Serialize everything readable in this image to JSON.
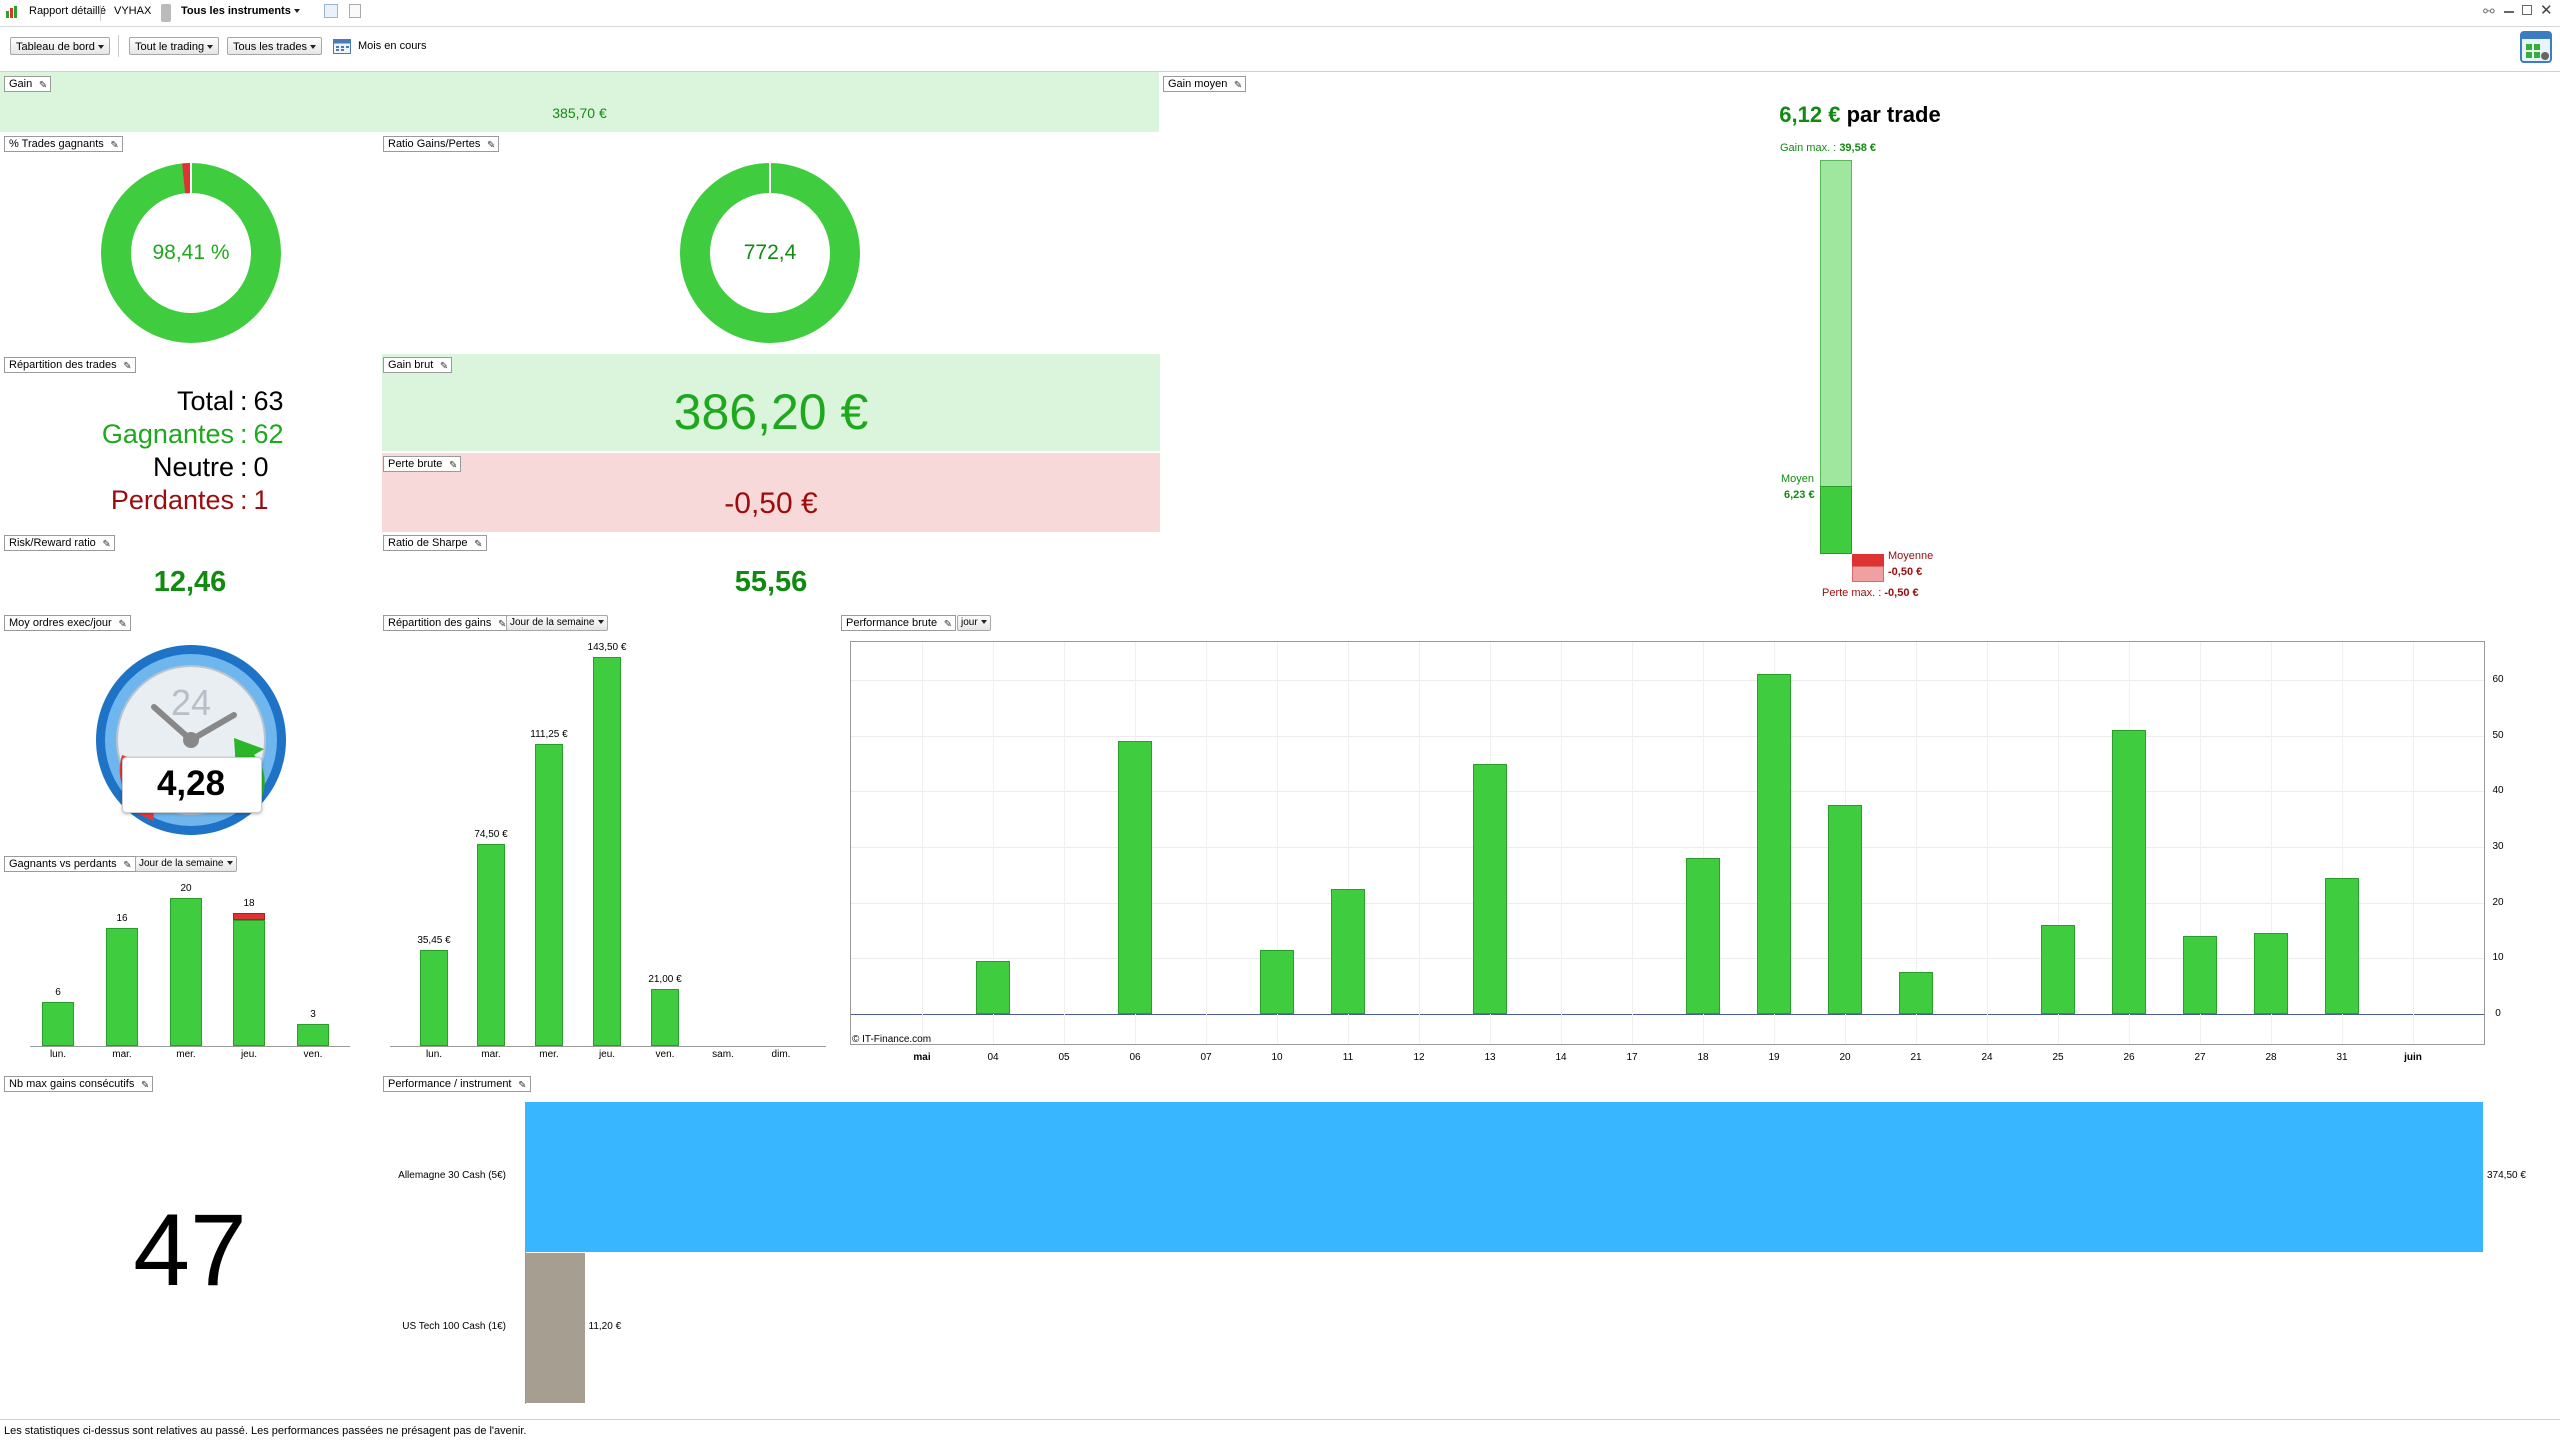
{
  "titlebar": {
    "report_label": "Rapport détaillé",
    "account": "VYHAX",
    "instruments": "Tous les instruments"
  },
  "toolbar": {
    "dashboard": "Tableau de bord",
    "trading": "Tout le trading",
    "trades": "Tous les trades",
    "period": "Mois en cours"
  },
  "gain": {
    "label": "Gain",
    "value": "385,70 €"
  },
  "gain_moyen": {
    "label": "Gain moyen",
    "value": "6,12 €",
    "suffix": "par trade",
    "max_label": "Gain max. :",
    "max_value": "39,58 €",
    "avg_label": "Moyen",
    "avg_value": "6,23 €",
    "loss_avg_label": "Moyenne",
    "loss_avg_value": "-0,50 €",
    "loss_max_label": "Perte max. :",
    "loss_max_value": "-0,50 €",
    "bar_levels": {
      "gain_max": 39.58,
      "avg_gain": 6.23,
      "avg_loss": -0.5,
      "loss_max": -0.5
    }
  },
  "pct_winning": {
    "label": "% Trades gagnants",
    "value": "98,41 %",
    "fraction": 0.9841
  },
  "ratio_gp": {
    "label": "Ratio Gains/Pertes",
    "value": "772,4"
  },
  "repartition": {
    "label": "Répartition des trades",
    "total_label": "Total",
    "total": "63",
    "win_label": "Gagnantes",
    "win": "62",
    "neutral_label": "Neutre",
    "neutral": "0",
    "loss_label": "Perdantes",
    "loss": "1"
  },
  "gain_brut": {
    "label": "Gain brut",
    "value": "386,20 €"
  },
  "perte_brute": {
    "label": "Perte brute",
    "value": "-0,50 €"
  },
  "rr": {
    "label": "Risk/Reward ratio",
    "value": "12,46"
  },
  "sharpe": {
    "label": "Ratio de Sharpe",
    "value": "55,56"
  },
  "ordres": {
    "label": "Moy ordres exec/jour",
    "value": "4,28",
    "clock_num": "24"
  },
  "gv": {
    "label": "Gagnants vs perdants",
    "dropdown": "Jour de la semaine"
  },
  "rep_gains": {
    "label": "Répartition des gains",
    "dropdown": "Jour de la semaine"
  },
  "perf_brute": {
    "label": "Performance brute",
    "dropdown": "jour",
    "copyright": "© IT-Finance.com"
  },
  "max_consec": {
    "label": "Nb max gains consécutifs",
    "value": "47"
  },
  "perf_instr": {
    "label": "Performance / instrument"
  },
  "footer": {
    "text": "Les statistiques ci-dessus sont relatives au passé. Les performances passées ne présagent pas de l'avenir."
  },
  "colors": {
    "green": "#3fcc3f",
    "red": "#dd3333",
    "blue": "#38b6ff",
    "gray": "#a79e92",
    "panel_green": "#daf5db",
    "panel_red": "#f7d9da"
  },
  "chart_data": [
    {
      "type": "bar",
      "title": "Gagnants vs perdants",
      "categories": [
        "lun.",
        "mar.",
        "mer.",
        "jeu.",
        "ven."
      ],
      "series": [
        {
          "name": "",
          "values": [
            6,
            16,
            20,
            17,
            3
          ]
        },
        {
          "name": "",
          "values": [
            0,
            0,
            0,
            1,
            0
          ]
        }
      ],
      "labels": [
        "6",
        "16",
        "20",
        "18",
        "3"
      ]
    },
    {
      "type": "bar",
      "title": "Répartition des gains",
      "categories": [
        "lun.",
        "mar.",
        "mer.",
        "jeu.",
        "ven.",
        "sam.",
        "dim."
      ],
      "values": [
        35.45,
        74.5,
        111.25,
        143.5,
        21.0,
        0,
        0
      ],
      "labels": [
        "35,45 €",
        "74,50 €",
        "111,25 €",
        "143,50 €",
        "21,00 €",
        "",
        ""
      ]
    },
    {
      "type": "bar",
      "title": "Performance brute",
      "categories": [
        "mai",
        "04",
        "05",
        "06",
        "07",
        "10",
        "11",
        "12",
        "13",
        "14",
        "17",
        "18",
        "19",
        "20",
        "21",
        "24",
        "25",
        "26",
        "27",
        "28",
        "31",
        "juin"
      ],
      "values": [
        0,
        9.5,
        0,
        49,
        0,
        11.5,
        22.5,
        0,
        45,
        0,
        0,
        28,
        61,
        37.5,
        7.5,
        0,
        16,
        51,
        14,
        14.5,
        24.5,
        0
      ],
      "ylim": [
        0,
        60
      ],
      "yticks": [
        0,
        10,
        20,
        30,
        40,
        50,
        60
      ]
    },
    {
      "type": "bar",
      "title": "Performance / instrument",
      "categories": [
        "Allemagne 30 Cash (5€)",
        "US Tech 100 Cash (1€)"
      ],
      "values": [
        374.5,
        11.2
      ],
      "labels": [
        "374,50 €",
        "11,20 €"
      ]
    }
  ]
}
